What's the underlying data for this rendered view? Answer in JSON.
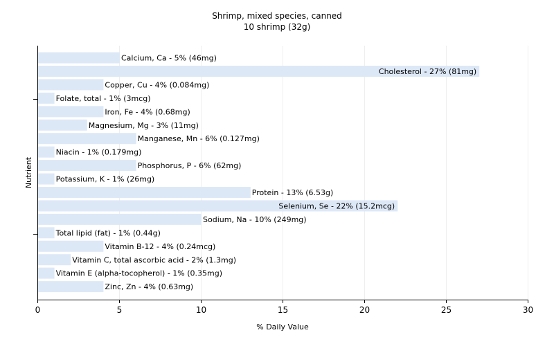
{
  "chart_data": {
    "type": "bar",
    "orientation": "horizontal",
    "title": "Shrimp, mixed species, canned",
    "subtitle": "10 shrimp (32g)",
    "xlabel": "% Daily Value",
    "ylabel": "Nutrient",
    "xlim": [
      0,
      30
    ],
    "xticks": [
      0,
      5,
      10,
      15,
      20,
      25,
      30
    ],
    "grid": true,
    "bar_color": "#dde8f7",
    "categories": [
      "Calcium, Ca",
      "Cholesterol",
      "Copper, Cu",
      "Folate, total",
      "Iron, Fe",
      "Magnesium, Mg",
      "Manganese, Mn",
      "Niacin",
      "Phosphorus, P",
      "Potassium, K",
      "Protein",
      "Selenium, Se",
      "Sodium, Na",
      "Total lipid (fat)",
      "Vitamin B-12",
      "Vitamin C, total ascorbic acid",
      "Vitamin E (alpha-tocopherol)",
      "Zinc, Zn"
    ],
    "values": [
      5,
      27,
      4,
      1,
      4,
      3,
      6,
      1,
      6,
      1,
      13,
      22,
      10,
      1,
      4,
      2,
      1,
      4
    ],
    "labels": [
      "Calcium, Ca - 5% (46mg)",
      "Cholesterol - 27% (81mg)",
      "Copper, Cu - 4% (0.084mg)",
      "Folate, total - 1% (3mcg)",
      "Iron, Fe - 4% (0.68mg)",
      "Magnesium, Mg - 3% (11mg)",
      "Manganese, Mn - 6% (0.127mg)",
      "Niacin - 1% (0.179mg)",
      "Phosphorus, P - 6% (62mg)",
      "Potassium, K - 1% (26mg)",
      "Protein - 13% (6.53g)",
      "Selenium, Se - 22% (15.2mcg)",
      "Sodium, Na - 10% (249mg)",
      "Total lipid (fat) - 1% (0.44g)",
      "Vitamin B-12 - 4% (0.24mcg)",
      "Vitamin C, total ascorbic acid - 2% (1.3mg)",
      "Vitamin E (alpha-tocopherol) - 1% (0.35mg)",
      "Zinc, Zn - 4% (0.63mg)"
    ]
  }
}
